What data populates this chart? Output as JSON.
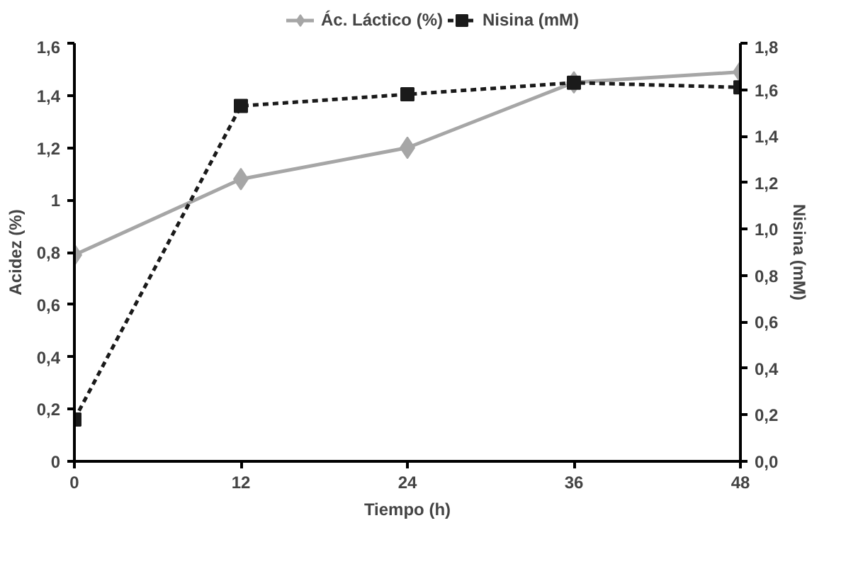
{
  "chart_data": {
    "type": "line",
    "xlabel": "Tiempo (h)",
    "ylabel": "Acidez (%)",
    "y2label": "Nisina (mM)",
    "x": [
      0,
      12,
      24,
      36,
      48
    ],
    "xlim": [
      0,
      48
    ],
    "xticks": [
      0,
      12,
      24,
      36,
      48
    ],
    "ylim": [
      0,
      1.6
    ],
    "yticks": [
      0,
      {
        "value": 0.2,
        "label": "0,2"
      },
      {
        "value": 0.4,
        "label": "0,4"
      },
      {
        "value": 0.6,
        "label": "0,6"
      },
      {
        "value": 0.8,
        "label": "0,8"
      },
      1,
      {
        "value": 1.2,
        "label": "1,2"
      },
      {
        "value": 1.4,
        "label": "1,4"
      },
      {
        "value": 1.6,
        "label": "1,6"
      }
    ],
    "y2lim": [
      0,
      1.8
    ],
    "y2ticks": [
      {
        "value": 0,
        "label": "0,0"
      },
      {
        "value": 0.2,
        "label": "0,2"
      },
      {
        "value": 0.4,
        "label": "0,4"
      },
      {
        "value": 0.6,
        "label": "0,6"
      },
      {
        "value": 0.8,
        "label": "0,8"
      },
      {
        "value": 1.0,
        "label": "1,0"
      },
      {
        "value": 1.2,
        "label": "1,2"
      },
      {
        "value": 1.4,
        "label": "1,4"
      },
      {
        "value": 1.6,
        "label": "1,6"
      },
      {
        "value": 1.8,
        "label": "1,8"
      }
    ],
    "grid": false,
    "legend": "top",
    "series": [
      {
        "name": "Ác. Láctico (%)",
        "color": "#a6a6a6",
        "values": [
          0.79,
          1.08,
          1.2,
          1.45,
          1.49
        ],
        "marker": "diamond",
        "line_style": "solid"
      },
      {
        "name": "Nisina (mM)",
        "color": "#1a1a1a",
        "values": [
          0.18,
          1.53,
          1.58,
          1.63,
          1.61
        ],
        "axis": "y2",
        "marker": "square",
        "line_style": "dashed"
      }
    ]
  }
}
